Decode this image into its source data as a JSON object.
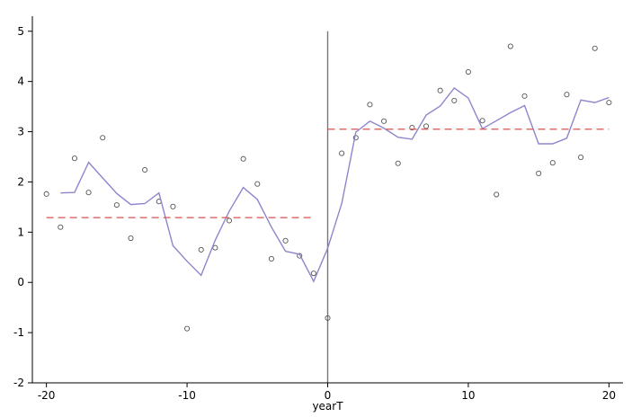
{
  "chart_data": {
    "type": "scatter",
    "title": "",
    "xlabel": "yearT",
    "ylabel": "",
    "xlim": [
      -21,
      21
    ],
    "ylim": [
      -2,
      5
    ],
    "xticks": [
      -20,
      -10,
      0,
      10,
      20
    ],
    "yticks": [
      -2,
      -1,
      0,
      1,
      2,
      3,
      4,
      5
    ],
    "xtick_labels": [
      "-20",
      "-10",
      "0",
      "10",
      "20"
    ],
    "ytick_labels": [
      "-2",
      "-1",
      "0",
      "1",
      "2",
      "3",
      "4",
      "5"
    ],
    "grid": false,
    "vline_x": 0,
    "colors": {
      "line": "#8f85cc",
      "mean_line": "#d9534f",
      "marker": "#555555",
      "axis": "#000000",
      "vline": "#777777"
    },
    "series": [
      {
        "kind": "scatter",
        "x": [
          -20,
          -19,
          -18,
          -17,
          -16,
          -15,
          -14,
          -13,
          -12,
          -11,
          -10,
          -9,
          -8,
          -7,
          -6,
          -5,
          -4,
          -3,
          -2,
          -1,
          0,
          1,
          2,
          3,
          4,
          5,
          6,
          7,
          8,
          9,
          10,
          11,
          12,
          13,
          14,
          15,
          16,
          17,
          18,
          19,
          20
        ],
        "y": [
          1.76,
          1.1,
          2.47,
          1.79,
          2.88,
          1.54,
          0.88,
          2.24,
          1.61,
          1.51,
          -0.92,
          0.65,
          0.69,
          1.23,
          2.46,
          1.96,
          0.47,
          0.83,
          0.53,
          0.18,
          -0.71,
          2.57,
          2.88,
          3.54,
          3.21,
          2.37,
          3.08,
          3.11,
          3.82,
          3.62,
          4.19,
          3.22,
          1.75,
          4.7,
          3.71,
          2.17,
          2.38,
          3.74,
          2.49,
          4.66,
          3.58
        ]
      },
      {
        "kind": "line",
        "x": [
          -19,
          -18,
          -17,
          -16,
          -15,
          -14,
          -13,
          -12,
          -11,
          -10,
          -9,
          -8,
          -7,
          -6,
          -5,
          -4,
          -3,
          -2,
          -1,
          0,
          1,
          2,
          3,
          4,
          5,
          6,
          7,
          8,
          9,
          10,
          11,
          12,
          13,
          14,
          15,
          16,
          17,
          18,
          19,
          20
        ],
        "y": [
          1.78,
          1.79,
          2.39,
          2.08,
          1.77,
          1.55,
          1.57,
          1.78,
          0.73,
          0.42,
          0.14,
          0.84,
          1.42,
          1.89,
          1.65,
          1.1,
          0.62,
          0.56,
          0.02,
          0.68,
          1.57,
          2.99,
          3.21,
          3.07,
          2.89,
          2.85,
          3.33,
          3.51,
          3.87,
          3.67,
          3.06,
          3.22,
          3.38,
          3.52,
          2.76,
          2.76,
          2.87,
          3.63,
          3.58,
          3.68
        ]
      },
      {
        "kind": "dashed",
        "x": [
          -20,
          -1
        ],
        "y": [
          1.29,
          1.29
        ]
      },
      {
        "kind": "dashed",
        "x": [
          0,
          20
        ],
        "y": [
          3.05,
          3.05
        ]
      }
    ]
  }
}
